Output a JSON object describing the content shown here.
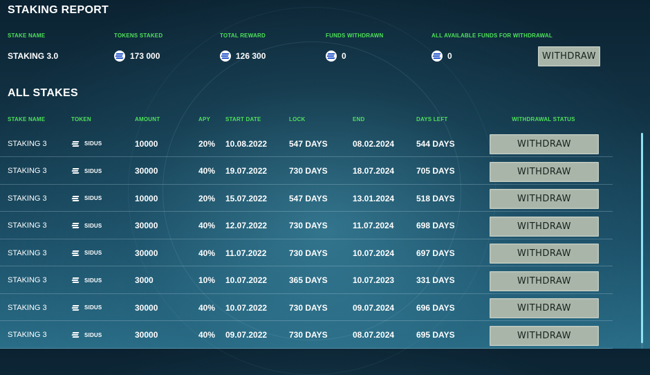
{
  "report": {
    "title": "STAKING REPORT",
    "summary": [
      {
        "key": "stake_name",
        "label": "STAKE NAME",
        "value": "STAKING 3.0",
        "coin": false
      },
      {
        "key": "tokens_staked",
        "label": "TOKENS STAKED",
        "value": "173 000",
        "coin": true
      },
      {
        "key": "total_reward",
        "label": "TOTAL REWARD",
        "value": "126 300",
        "coin": true
      },
      {
        "key": "funds_withdrawn",
        "label": "FUNDS WITHDRAWN",
        "value": "0",
        "coin": true
      },
      {
        "key": "available",
        "label": "ALL AVAILABLE FUNDS FOR WITHDRAWAL",
        "value": "0",
        "coin": true
      }
    ],
    "withdraw_label": "WITHDRAW"
  },
  "stakes": {
    "title": "ALL STAKES",
    "columns": [
      "STAKE NAME",
      "TOKEN",
      "AMOUNT",
      "APY",
      "START DATE",
      "LOCK",
      "END",
      "DAYS LEFT",
      "WITHDRAWAL STATUS"
    ],
    "rows": [
      {
        "name": "STAKING 3",
        "token": "SIDUS",
        "amount": "10000",
        "apy": "20%",
        "start": "10.08.2022",
        "lock": "547 DAYS",
        "end": "08.02.2024",
        "days_left": "544 DAYS",
        "action": "WITHDRAW"
      },
      {
        "name": "STAKING 3",
        "token": "SIDUS",
        "amount": "30000",
        "apy": "40%",
        "start": "19.07.2022",
        "lock": "730 DAYS",
        "end": "18.07.2024",
        "days_left": "705 DAYS",
        "action": "WITHDRAW"
      },
      {
        "name": "STAKING 3",
        "token": "SIDUS",
        "amount": "10000",
        "apy": "20%",
        "start": "15.07.2022",
        "lock": "547 DAYS",
        "end": "13.01.2024",
        "days_left": "518 DAYS",
        "action": "WITHDRAW"
      },
      {
        "name": "STAKING 3",
        "token": "SIDUS",
        "amount": "30000",
        "apy": "40%",
        "start": "12.07.2022",
        "lock": "730 DAYS",
        "end": "11.07.2024",
        "days_left": "698 DAYS",
        "action": "WITHDRAW"
      },
      {
        "name": "STAKING 3",
        "token": "SIDUS",
        "amount": "30000",
        "apy": "40%",
        "start": "11.07.2022",
        "lock": "730 DAYS",
        "end": "10.07.2024",
        "days_left": "697 DAYS",
        "action": "WITHDRAW"
      },
      {
        "name": "STAKING 3",
        "token": "SIDUS",
        "amount": "3000",
        "apy": "10%",
        "start": "10.07.2022",
        "lock": "365 DAYS",
        "end": "10.07.2023",
        "days_left": "331 DAYS",
        "action": "WITHDRAW"
      },
      {
        "name": "STAKING 3",
        "token": "SIDUS",
        "amount": "30000",
        "apy": "40%",
        "start": "10.07.2022",
        "lock": "730 DAYS",
        "end": "09.07.2024",
        "days_left": "696 DAYS",
        "action": "WITHDRAW"
      },
      {
        "name": "STAKING 3",
        "token": "SIDUS",
        "amount": "30000",
        "apy": "40%",
        "start": "09.07.2022",
        "lock": "730 DAYS",
        "end": "08.07.2024",
        "days_left": "695 DAYS",
        "action": "WITHDRAW"
      }
    ]
  },
  "icons": {
    "token": "sidus-coin-icon"
  },
  "colors": {
    "label_green": "#4ee05a",
    "button_bg": "#a9b5a9",
    "scrollbar": "#8fe3f2"
  }
}
